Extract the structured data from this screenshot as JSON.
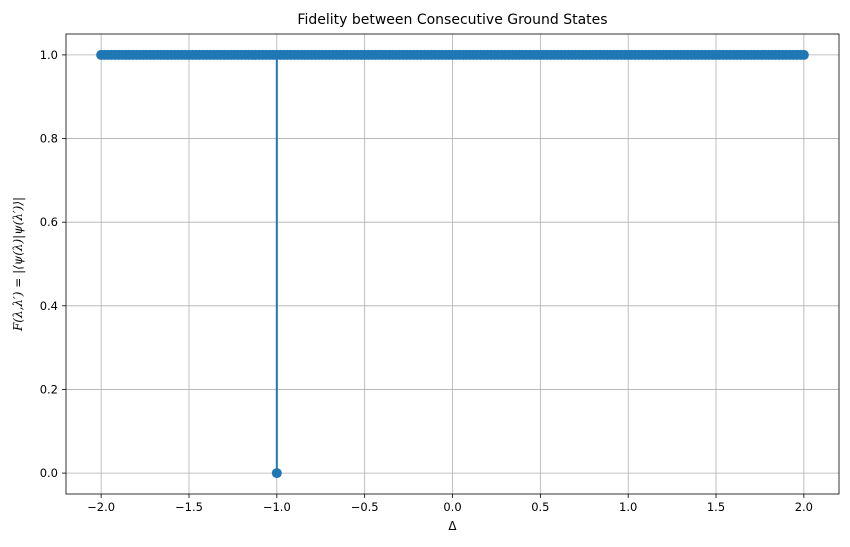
{
  "chart_data": {
    "type": "line",
    "title": "Fidelity between Consecutive Ground States",
    "xlabel": "Δ",
    "ylabel": "F(λ,λ′) = |⟨ψ(λ)|ψ(λ′)⟩|",
    "xlim": [
      -2.2,
      2.2
    ],
    "ylim": [
      -0.05,
      1.05
    ],
    "xticks": [
      -2.0,
      -1.5,
      -1.0,
      -0.5,
      0.0,
      0.5,
      1.0,
      1.5,
      2.0
    ],
    "xtick_labels": [
      "−2.0",
      "−1.5",
      "−1.0",
      "−0.5",
      "0.0",
      "0.5",
      "1.0",
      "1.5",
      "2.0"
    ],
    "yticks": [
      0.0,
      0.2,
      0.4,
      0.6,
      0.8,
      1.0
    ],
    "ytick_labels": [
      "0.0",
      "0.2",
      "0.4",
      "0.6",
      "0.8",
      "1.0"
    ],
    "grid": true,
    "series": [
      {
        "color": "#1f77b4",
        "marker": "circle",
        "x_range": [
          -2.0,
          2.0
        ],
        "baseline_value": 1.0,
        "dip": {
          "x": -1.0,
          "y": 0.0
        }
      }
    ]
  }
}
